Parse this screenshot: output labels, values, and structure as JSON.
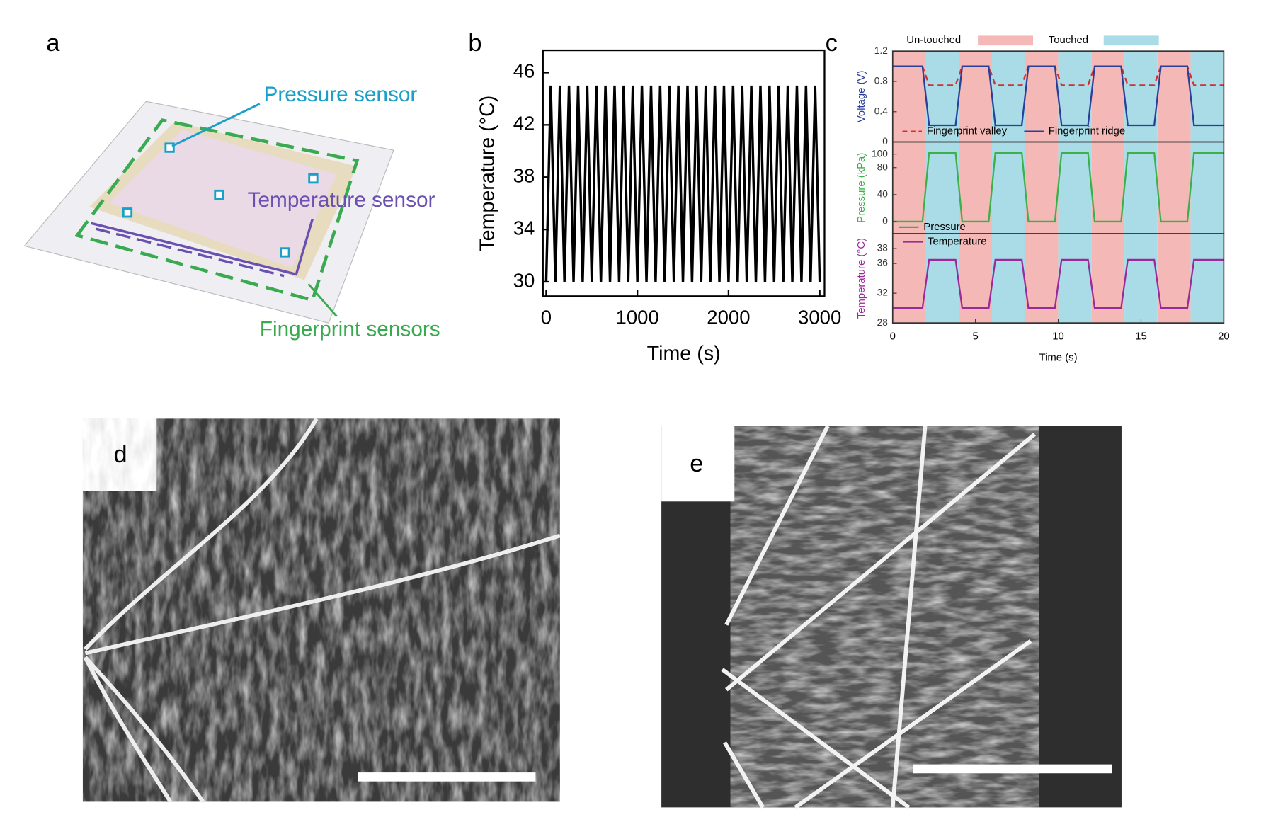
{
  "panel_labels": [
    "a",
    "b",
    "c",
    "d",
    "e"
  ],
  "diagram": {
    "labels": [
      "Pressure sensor",
      "Temperature sensor",
      "Fingerprint sensors"
    ]
  },
  "chart_data": [
    {
      "type": "line",
      "xlabel": "Time (s)",
      "ylabel": "Temperature (°C)",
      "x": [
        0,
        50,
        100,
        150,
        200,
        250,
        300,
        350,
        400,
        450,
        500,
        550,
        600,
        650,
        700,
        750,
        800,
        850,
        900,
        950,
        1000,
        1050,
        1100,
        1150,
        1200,
        1250,
        1300,
        1350,
        1400,
        1450,
        1500,
        1550,
        1600,
        1650,
        1700,
        1750,
        1800,
        1850,
        1900,
        1950,
        2000,
        2050,
        2100,
        2150,
        2200,
        2250,
        2300,
        2350,
        2400,
        2450,
        2500,
        2550,
        2600,
        2650,
        2700,
        2750,
        2800,
        2850,
        2900,
        2950,
        3000
      ],
      "series": [
        {
          "color": "#000000",
          "values": [
            30,
            45,
            30,
            45,
            30,
            45,
            30,
            45,
            30,
            45,
            30,
            45,
            30,
            45,
            30,
            45,
            30,
            45,
            30,
            45,
            30,
            45,
            30,
            45,
            30,
            45,
            30,
            45,
            30,
            45,
            30,
            45,
            30,
            45,
            30,
            45,
            30,
            45,
            30,
            45,
            30,
            45,
            30,
            45,
            30,
            45,
            30,
            45,
            30,
            45,
            30,
            45,
            30,
            45,
            30,
            45,
            30,
            45,
            30,
            45,
            30
          ]
        }
      ],
      "xlim": [
        -36,
        3053
      ],
      "ylim": [
        28.9,
        47.7
      ],
      "xticks": [
        0,
        1000,
        2000,
        3000
      ],
      "yticks": [
        30,
        34,
        38,
        42,
        46
      ]
    },
    {
      "type": "line",
      "xlabel": "Time (s)",
      "x": [
        0,
        1.8,
        2.2,
        3.8,
        4.2,
        5.8,
        6.2,
        7.8,
        8.2,
        9.8,
        10.2,
        11.8,
        12.2,
        13.8,
        14.2,
        15.8,
        16.2,
        17.8,
        18.2,
        20
      ],
      "xlim": [
        0,
        20
      ],
      "xticks": [
        0,
        5,
        10,
        15,
        20
      ],
      "regions": [
        {
          "name": "Un-touched",
          "color": "#f4b9b7",
          "spans": [
            [
              0,
              2
            ],
            [
              4,
              6
            ],
            [
              8,
              10
            ],
            [
              12,
              14
            ],
            [
              16,
              18
            ]
          ]
        },
        {
          "name": "Touched",
          "color": "#a9dce6",
          "spans": [
            [
              2,
              4
            ],
            [
              6,
              8
            ],
            [
              10,
              12
            ],
            [
              14,
              16
            ],
            [
              18,
              20
            ]
          ]
        }
      ],
      "subplots": [
        {
          "ylabel": "Voltage (V)",
          "label_color": "#2a3f9a",
          "ylim": [
            0,
            1.2
          ],
          "yticks": [
            0,
            0.4,
            0.8,
            1.2
          ],
          "series": [
            {
              "name": "Fingerprint valley",
              "color": "#d03030",
              "dashed": true,
              "values": [
                1.0,
                1.0,
                0.75,
                0.75,
                1.0,
                1.0,
                0.75,
                0.75,
                1.0,
                1.0,
                0.75,
                0.75,
                1.0,
                1.0,
                0.75,
                0.75,
                1.0,
                1.0,
                0.75,
                0.75
              ]
            },
            {
              "name": "Fingerprint ridge",
              "color": "#2a3f9a",
              "dashed": false,
              "values": [
                1.0,
                1.0,
                0.22,
                0.22,
                1.0,
                1.0,
                0.22,
                0.22,
                1.0,
                1.0,
                0.22,
                0.22,
                1.0,
                1.0,
                0.22,
                0.22,
                1.0,
                1.0,
                0.22,
                0.22
              ]
            }
          ]
        },
        {
          "ylabel": "Pressure (kPa)",
          "label_color": "#3cb04a",
          "ylim": [
            -18,
            118
          ],
          "yticks": [
            0,
            40,
            80,
            100
          ],
          "series": [
            {
              "name": "Pressure",
              "color": "#3cb04a",
              "dashed": false,
              "values": [
                0,
                0,
                102,
                102,
                0,
                0,
                102,
                102,
                0,
                0,
                102,
                102,
                0,
                0,
                102,
                102,
                0,
                0,
                102,
                102
              ]
            }
          ]
        },
        {
          "ylabel": "Temperature (°C)",
          "label_color": "#9a2a9a",
          "ylim": [
            28,
            40
          ],
          "yticks": [
            28,
            32,
            36,
            38
          ],
          "series": [
            {
              "name": "Temperature",
              "color": "#9a2a9a",
              "dashed": false,
              "values": [
                30,
                30,
                36.5,
                36.5,
                30,
                30,
                36.5,
                36.5,
                30,
                30,
                36.5,
                36.5,
                30,
                30,
                36.5,
                36.5,
                30,
                30,
                36.5,
                36.5
              ]
            }
          ]
        }
      ]
    }
  ]
}
